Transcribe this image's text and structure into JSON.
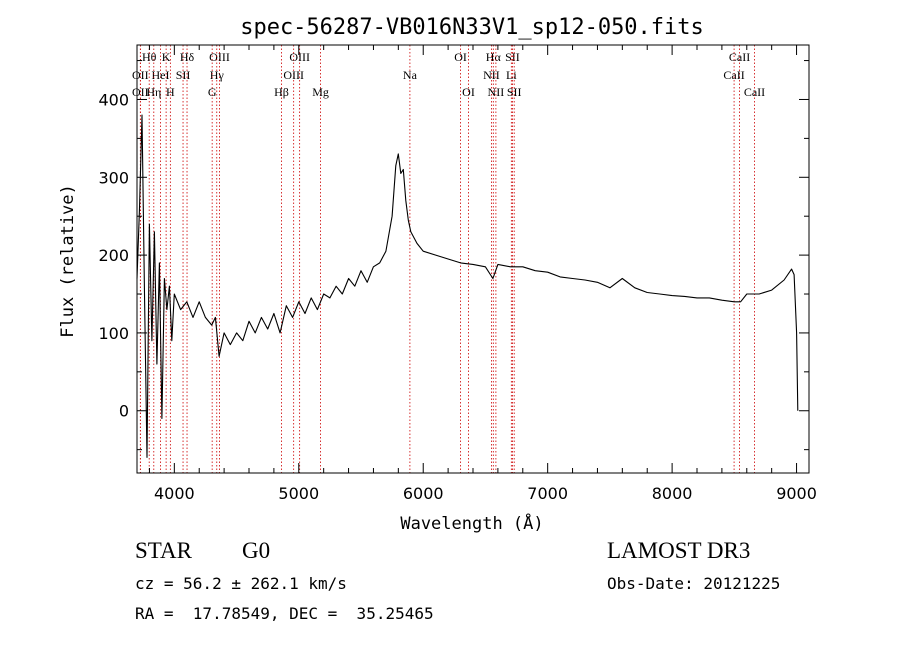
{
  "chart_data": {
    "type": "line",
    "title": "spec-56287-VB016N33V1_sp12-050.fits",
    "xlabel": "Wavelength (Å)",
    "ylabel": "Flux (relative)",
    "xlim": [
      3700,
      9100
    ],
    "ylim": [
      -80,
      470
    ],
    "xticks": [
      4000,
      5000,
      6000,
      7000,
      8000,
      9000
    ],
    "yticks": [
      0,
      100,
      200,
      300,
      400
    ],
    "grid": false,
    "series": [
      {
        "name": "flux",
        "x": [
          3700,
          3720,
          3740,
          3760,
          3780,
          3800,
          3820,
          3840,
          3860,
          3880,
          3900,
          3920,
          3940,
          3960,
          3980,
          4000,
          4050,
          4100,
          4150,
          4200,
          4250,
          4300,
          4330,
          4360,
          4400,
          4450,
          4500,
          4550,
          4600,
          4650,
          4700,
          4750,
          4800,
          4850,
          4900,
          4950,
          5000,
          5050,
          5100,
          5150,
          5200,
          5250,
          5300,
          5350,
          5400,
          5450,
          5500,
          5550,
          5600,
          5650,
          5700,
          5750,
          5780,
          5800,
          5820,
          5840,
          5860,
          5880,
          5900,
          5950,
          6000,
          6100,
          6200,
          6300,
          6400,
          6500,
          6560,
          6600,
          6700,
          6800,
          6900,
          7000,
          7100,
          7200,
          7300,
          7400,
          7500,
          7600,
          7700,
          7800,
          7900,
          8000,
          8100,
          8200,
          8300,
          8400,
          8500,
          8550,
          8600,
          8700,
          8800,
          8900,
          8960,
          8980,
          9000,
          9010
        ],
        "y": [
          170,
          260,
          380,
          150,
          -60,
          240,
          90,
          230,
          60,
          190,
          -10,
          170,
          130,
          160,
          90,
          150,
          130,
          140,
          120,
          140,
          120,
          110,
          120,
          70,
          100,
          85,
          100,
          90,
          115,
          100,
          120,
          105,
          125,
          100,
          135,
          120,
          140,
          125,
          145,
          130,
          150,
          145,
          160,
          150,
          170,
          160,
          180,
          165,
          185,
          190,
          205,
          250,
          315,
          330,
          305,
          310,
          270,
          245,
          230,
          215,
          205,
          200,
          195,
          190,
          188,
          185,
          170,
          188,
          185,
          185,
          180,
          178,
          172,
          170,
          168,
          165,
          158,
          170,
          158,
          152,
          150,
          148,
          147,
          145,
          145,
          142,
          140,
          140,
          150,
          150,
          155,
          168,
          182,
          175,
          100,
          0
        ]
      }
    ],
    "lines": [
      {
        "label": "Hθ",
        "w": 3798,
        "row": 0
      },
      {
        "label": "K",
        "w": 3934,
        "row": 0
      },
      {
        "label": "Hδ",
        "w": 4102,
        "row": 0
      },
      {
        "label": "OIII",
        "w": 4363,
        "row": 0
      },
      {
        "label": "OIII",
        "w": 5007,
        "row": 0
      },
      {
        "label": "OI",
        "w": 6300,
        "row": 0
      },
      {
        "label": "Hα",
        "w": 6563,
        "row": 0
      },
      {
        "label": "SII",
        "w": 6717,
        "row": 0
      },
      {
        "label": "CaII",
        "w": 8542,
        "row": 0
      },
      {
        "label": "OII",
        "w": 3727,
        "row": 1
      },
      {
        "label": "HeI",
        "w": 3889,
        "row": 1
      },
      {
        "label": "SII",
        "w": 4070,
        "row": 1
      },
      {
        "label": "Hγ",
        "w": 4341,
        "row": 1
      },
      {
        "label": "OIII",
        "w": 4959,
        "row": 1
      },
      {
        "label": "Na",
        "w": 5893,
        "row": 1
      },
      {
        "label": "NII",
        "w": 6548,
        "row": 1
      },
      {
        "label": "Li",
        "w": 6708,
        "row": 1
      },
      {
        "label": "CaII",
        "w": 8498,
        "row": 1
      },
      {
        "label": "OII",
        "w": 3727,
        "row": 2
      },
      {
        "label": "Hη",
        "w": 3835,
        "row": 2
      },
      {
        "label": "H",
        "w": 3968,
        "row": 2
      },
      {
        "label": "G",
        "w": 4304,
        "row": 2
      },
      {
        "label": "Hβ",
        "w": 4861,
        "row": 2
      },
      {
        "label": "Mg",
        "w": 5175,
        "row": 2
      },
      {
        "label": "OI",
        "w": 6364,
        "row": 2
      },
      {
        "label": "NII",
        "w": 6584,
        "row": 2
      },
      {
        "label": "SII",
        "w": 6731,
        "row": 2
      },
      {
        "label": "CaII",
        "w": 8662,
        "row": 2
      }
    ],
    "line_color": "#cc0000"
  },
  "info": {
    "object_class": "STAR",
    "subclass": "G0",
    "survey": "LAMOST DR3",
    "cz": "cz = 56.2 ± 262.1 km/s",
    "obs_date": "Obs-Date: 20121225",
    "coords": "RA =  17.78549, DEC =  35.25465"
  }
}
